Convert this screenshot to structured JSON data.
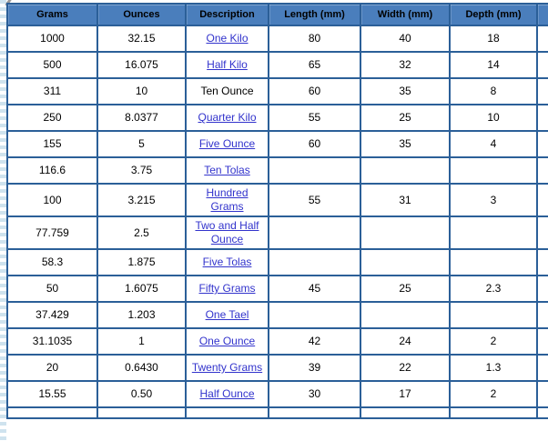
{
  "colors": {
    "header_bg": "#4a7ebc",
    "border": "#2b5f98",
    "link": "#3233cc",
    "edge_stripe": "#cfe3ee"
  },
  "table": {
    "columns": [
      "Grams",
      "Ounces",
      "Description",
      "Length (mm)",
      "Width (mm)",
      "Depth (mm)"
    ],
    "rows": [
      {
        "grams": "1000",
        "ounces": "32.15",
        "description": "One Kilo",
        "is_link": true,
        "length": "80",
        "width": "40",
        "depth": "18"
      },
      {
        "grams": "500",
        "ounces": "16.075",
        "description": "Half Kilo",
        "is_link": true,
        "length": "65",
        "width": "32",
        "depth": "14"
      },
      {
        "grams": "311",
        "ounces": "10",
        "description": "Ten Ounce",
        "is_link": false,
        "length": "60",
        "width": "35",
        "depth": "8"
      },
      {
        "grams": "250",
        "ounces": "8.0377",
        "description": "Quarter Kilo",
        "is_link": true,
        "length": "55",
        "width": "25",
        "depth": "10"
      },
      {
        "grams": "155",
        "ounces": "5",
        "description": "Five Ounce",
        "is_link": true,
        "length": "60",
        "width": "35",
        "depth": "4"
      },
      {
        "grams": "116.6",
        "ounces": "3.75",
        "description": "Ten Tolas",
        "is_link": true,
        "length": "",
        "width": "",
        "depth": ""
      },
      {
        "grams": "100",
        "ounces": "3.215",
        "description": "Hundred Grams",
        "is_link": true,
        "length": "55",
        "width": "31",
        "depth": "3"
      },
      {
        "grams": "77.759",
        "ounces": "2.5",
        "description": "Two and Half Ounce",
        "is_link": true,
        "length": "",
        "width": "",
        "depth": ""
      },
      {
        "grams": "58.3",
        "ounces": "1.875",
        "description": "Five Tolas",
        "is_link": true,
        "length": "",
        "width": "",
        "depth": ""
      },
      {
        "grams": "50",
        "ounces": "1.6075",
        "description": "Fifty Grams",
        "is_link": true,
        "length": "45",
        "width": "25",
        "depth": "2.3"
      },
      {
        "grams": "37.429",
        "ounces": "1.203",
        "description": "One Tael",
        "is_link": true,
        "length": "",
        "width": "",
        "depth": ""
      },
      {
        "grams": "31.1035",
        "ounces": "1",
        "description": "One Ounce",
        "is_link": true,
        "length": "42",
        "width": "24",
        "depth": "2"
      },
      {
        "grams": "20",
        "ounces": "0.6430",
        "description": "Twenty Grams",
        "is_link": true,
        "length": "39",
        "width": "22",
        "depth": "1.3"
      },
      {
        "grams": "15.55",
        "ounces": "0.50",
        "description": "Half Ounce",
        "is_link": true,
        "length": "30",
        "width": "17",
        "depth": "2"
      }
    ]
  }
}
